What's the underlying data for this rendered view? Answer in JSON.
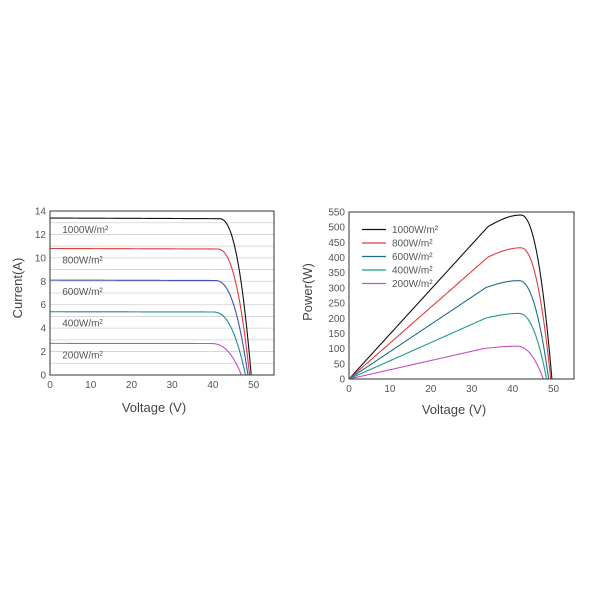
{
  "chart_data": [
    {
      "type": "line",
      "xlabel": "Voltage  (V)",
      "ylabel": "Current(A)",
      "xlim": [
        0,
        55
      ],
      "ylim": [
        0,
        14
      ],
      "xticks": [
        0,
        10,
        20,
        30,
        40,
        50
      ],
      "yticks": [
        0,
        2,
        4,
        6,
        8,
        10,
        12,
        14
      ],
      "grid": true,
      "series": [
        {
          "name": "1000W/m²",
          "color": "#111111",
          "isc": 13.4,
          "voc": 49.4,
          "vk": 41.5
        },
        {
          "name": "800W/m²",
          "color": "#e23b3b",
          "isc": 10.8,
          "voc": 49.0,
          "vk": 41.0
        },
        {
          "name": "600W/m²",
          "color": "#3f51b5",
          "isc": 8.1,
          "voc": 48.6,
          "vk": 40.5
        },
        {
          "name": "400W/m²",
          "color": "#1e8c94",
          "isc": 5.4,
          "voc": 48.0,
          "vk": 40.0
        },
        {
          "name": "200W/m²",
          "color": "#c44fc4",
          "isc": 2.7,
          "voc": 47.0,
          "vk": 39.5
        }
      ]
    },
    {
      "type": "line",
      "xlabel": "Voltage  (V)",
      "ylabel": "Power(W)",
      "xlim": [
        0,
        55
      ],
      "ylim": [
        0,
        550
      ],
      "xticks": [
        0,
        10,
        20,
        30,
        40,
        50
      ],
      "yticks": [
        0,
        50,
        100,
        150,
        200,
        250,
        300,
        350,
        400,
        450,
        500,
        550
      ],
      "grid": false,
      "legend": "top-left",
      "series": [
        {
          "name": "1000W/m²",
          "color": "#111111",
          "vmp": 42,
          "pmax": 540,
          "voc": 49.6
        },
        {
          "name": "800W/m²",
          "color": "#e23b3b",
          "vmp": 42,
          "pmax": 432,
          "voc": 49.3
        },
        {
          "name": "600W/m²",
          "color": "#1e6e8c",
          "vmp": 41.5,
          "pmax": 324,
          "voc": 48.8
        },
        {
          "name": "400W/m²",
          "color": "#1e9c8c",
          "vmp": 41.5,
          "pmax": 216,
          "voc": 48.3
        },
        {
          "name": "200W/m²",
          "color": "#c44fc4",
          "vmp": 41,
          "pmax": 108,
          "voc": 47.5
        }
      ]
    }
  ]
}
